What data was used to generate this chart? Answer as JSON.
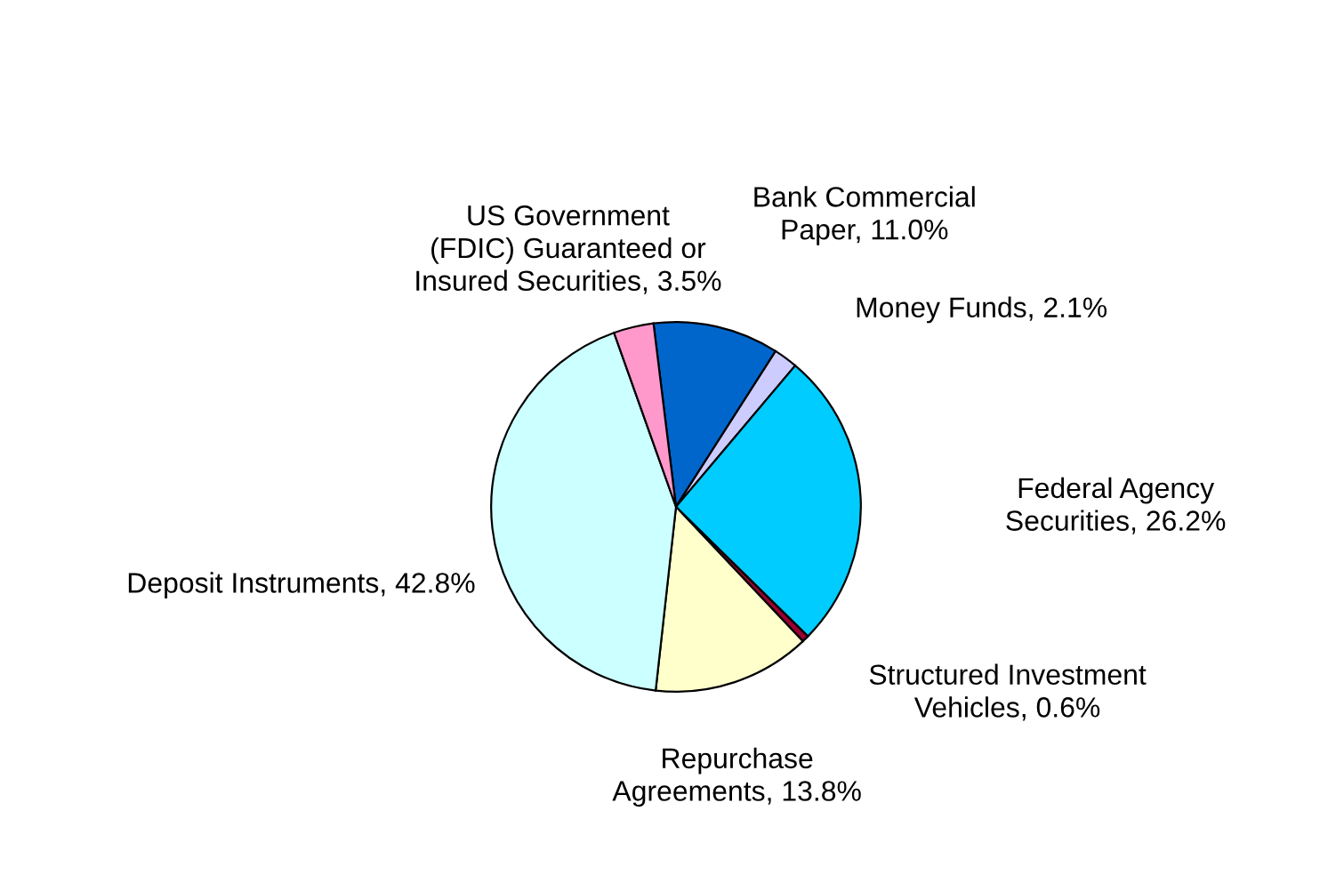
{
  "chart_data": {
    "type": "pie",
    "categories": [
      "Bank Commercial\nPaper",
      "Money Funds",
      "Federal Agency\nSecurities",
      "Structured Investment\nVehicles",
      "Repurchase\nAgreements",
      "Deposit Instruments",
      "US Government\n(FDIC) Guaranteed or\nInsured Securities"
    ],
    "values": [
      11.0,
      2.1,
      26.2,
      0.6,
      13.8,
      42.8,
      3.5
    ],
    "value_labels": [
      "11.0%",
      "2.1%",
      "26.2%",
      "0.6%",
      "13.8%",
      "42.8%",
      "3.5%"
    ],
    "colors": [
      "#0066cc",
      "#ccccff",
      "#00ccff",
      "#990033",
      "#ffffcc",
      "#ccffff",
      "#ff99cc"
    ],
    "legend": false
  }
}
